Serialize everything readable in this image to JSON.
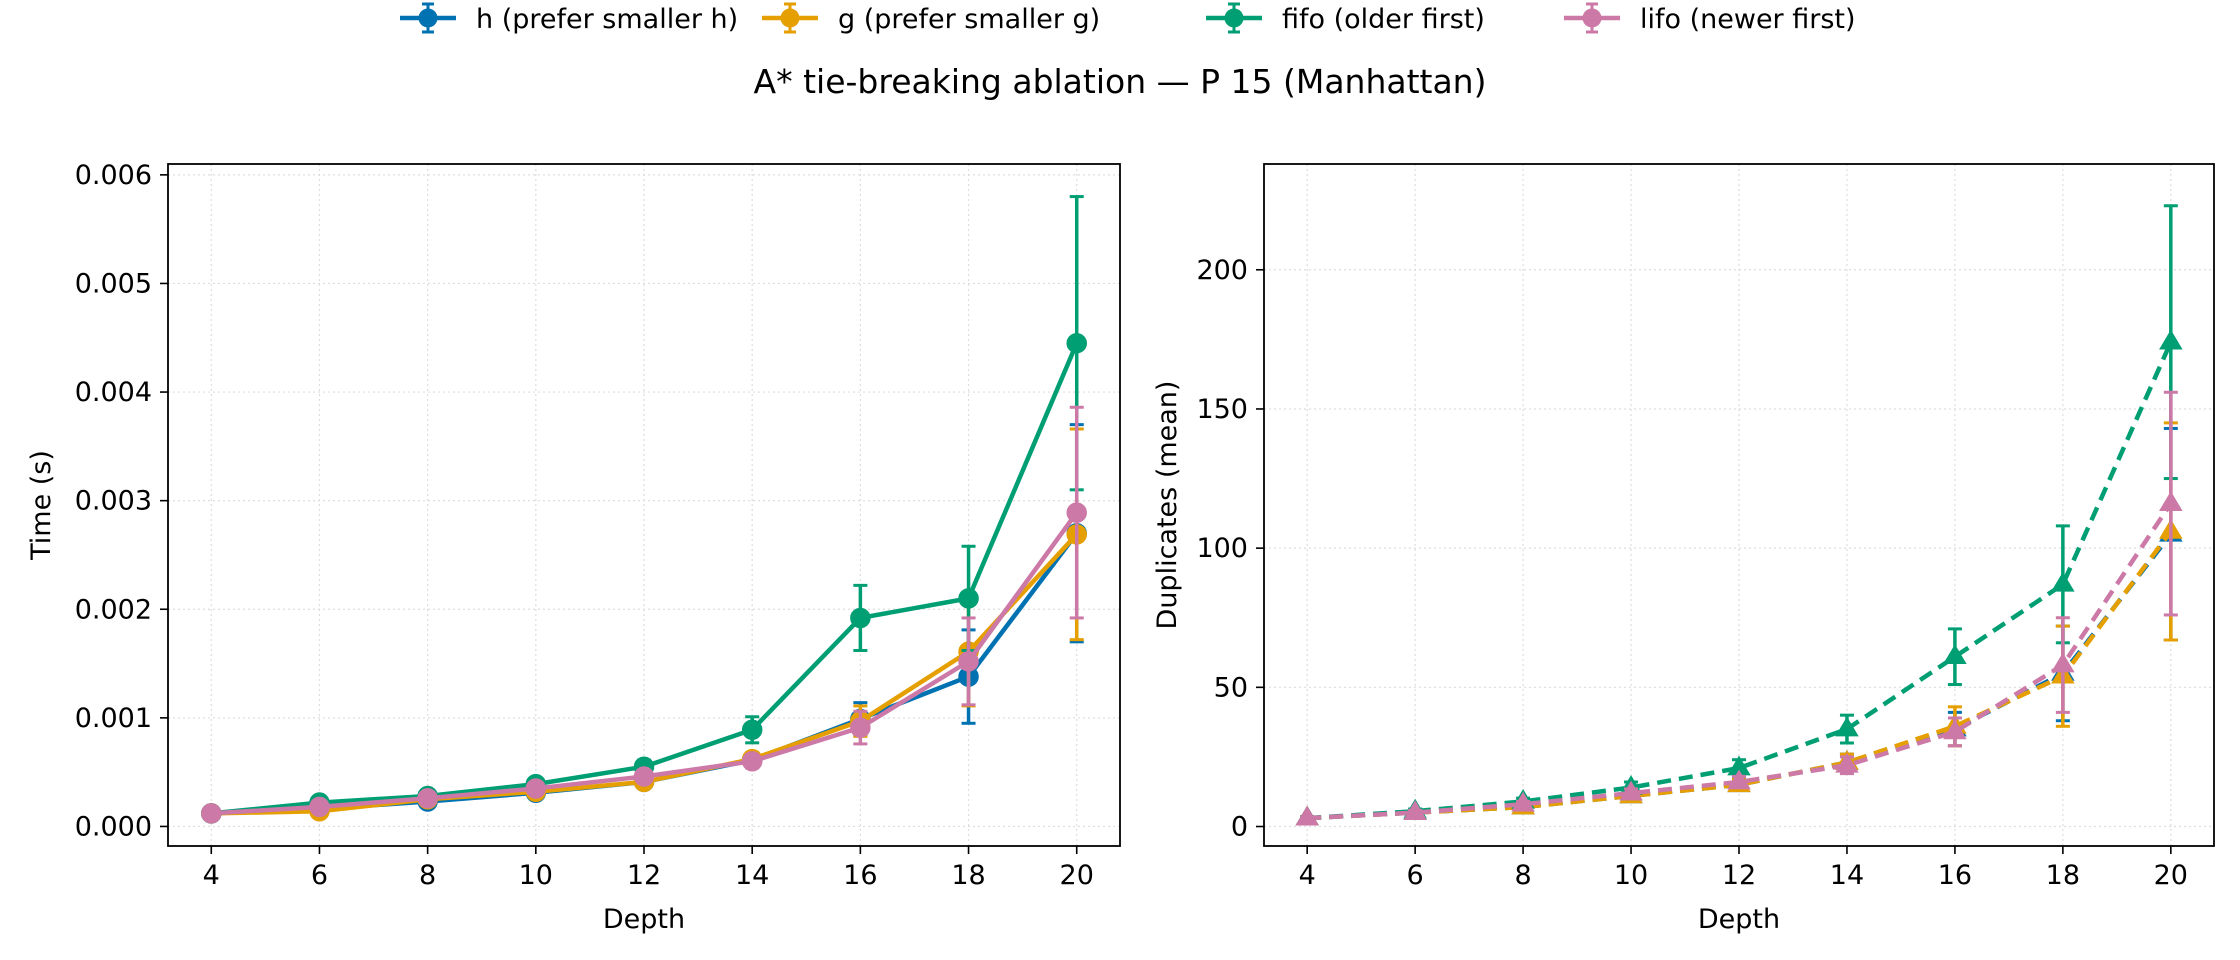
{
  "figure": {
    "title": "A* tie-breaking ablation — P 15 (Manhattan)"
  },
  "legend": [
    {
      "label": "h (prefer smaller h)",
      "color": "#0072B2"
    },
    {
      "label": "g (prefer smaller g)",
      "color": "#E69F00"
    },
    {
      "label": "fifo (older first)",
      "color": "#009E73"
    },
    {
      "label": "lifo (newer first)",
      "color": "#CC79A7"
    }
  ],
  "chart_data": [
    {
      "type": "line",
      "xlabel": "Depth",
      "ylabel": "Time (s)",
      "x": [
        4,
        6,
        8,
        10,
        12,
        14,
        16,
        18,
        20
      ],
      "xlim": [
        3.2,
        20.8
      ],
      "ylim": [
        -0.00018,
        0.0061
      ],
      "yticks": [
        0.0,
        0.001,
        0.002,
        0.003,
        0.004,
        0.005,
        0.006
      ],
      "ytick_labels": [
        "0.000",
        "0.001",
        "0.002",
        "0.003",
        "0.004",
        "0.005",
        "0.006"
      ],
      "marker": "circle",
      "line_style": "solid",
      "grid": true,
      "series": [
        {
          "name": "h (prefer smaller h)",
          "color": "#0072B2",
          "values": [
            0.00012,
            0.00016,
            0.00023,
            0.00031,
            0.00041,
            0.00061,
            0.00099,
            0.00138,
            0.0027
          ],
          "err": [
            1e-05,
            2e-05,
            3e-05,
            4e-05,
            5e-05,
            6e-05,
            0.00015,
            0.00043,
            0.001
          ]
        },
        {
          "name": "g (prefer smaller g)",
          "color": "#E69F00",
          "values": [
            0.00012,
            0.00014,
            0.00025,
            0.00032,
            0.00041,
            0.00062,
            0.00097,
            0.00161,
            0.00269
          ],
          "err": [
            1e-05,
            2e-05,
            3e-05,
            4e-05,
            5e-05,
            6e-05,
            0.00014,
            0.0005,
            0.00097
          ]
        },
        {
          "name": "fifo (older first)",
          "color": "#009E73",
          "values": [
            0.00012,
            0.00022,
            0.00028,
            0.00039,
            0.00055,
            0.00089,
            0.00192,
            0.0021,
            0.00445
          ],
          "err": [
            1e-05,
            3e-05,
            3e-05,
            4e-05,
            6e-05,
            0.00012,
            0.0003,
            0.00048,
            0.00135
          ]
        },
        {
          "name": "lifo (newer first)",
          "color": "#CC79A7",
          "values": [
            0.00012,
            0.00018,
            0.00026,
            0.00035,
            0.00046,
            0.0006,
            0.00091,
            0.00152,
            0.00289
          ],
          "err": [
            1e-05,
            2e-05,
            3e-05,
            4e-05,
            5e-05,
            6e-05,
            0.00015,
            0.0004,
            0.00097
          ]
        }
      ]
    },
    {
      "type": "line",
      "xlabel": "Depth",
      "ylabel": "Duplicates (mean)",
      "x": [
        4,
        6,
        8,
        10,
        12,
        14,
        16,
        18,
        20
      ],
      "xlim": [
        3.2,
        20.8
      ],
      "ylim": [
        -7,
        238
      ],
      "yticks": [
        0,
        50,
        100,
        150,
        200
      ],
      "ytick_labels": [
        "0",
        "50",
        "100",
        "150",
        "200"
      ],
      "marker": "triangle",
      "line_style": "dashed",
      "grid": true,
      "series": [
        {
          "name": "h (prefer smaller h)",
          "color": "#0072B2",
          "values": [
            3,
            5,
            7,
            11,
            15,
            23,
            35,
            55,
            105
          ],
          "err": [
            0.5,
            0.8,
            1.0,
            1.5,
            2.0,
            3.0,
            6.0,
            17.0,
            38.0
          ]
        },
        {
          "name": "g (prefer smaller g)",
          "color": "#E69F00",
          "values": [
            3,
            5,
            7,
            11,
            15,
            23,
            36,
            54,
            106
          ],
          "err": [
            0.5,
            0.8,
            1.0,
            1.5,
            2.0,
            3.0,
            7.0,
            18.0,
            39.0
          ]
        },
        {
          "name": "fifo (older first)",
          "color": "#009E73",
          "values": [
            3,
            5.5,
            9,
            14,
            21,
            35,
            61,
            87,
            174
          ],
          "err": [
            0.5,
            0.8,
            1.2,
            2.0,
            3.0,
            5.0,
            10.0,
            21.0,
            49.0
          ]
        },
        {
          "name": "lifo (newer first)",
          "color": "#CC79A7",
          "values": [
            3,
            5,
            8,
            12,
            16,
            22,
            34,
            58,
            116
          ],
          "err": [
            0.5,
            0.8,
            1.0,
            1.5,
            2.0,
            3.0,
            5.0,
            17.0,
            40.0
          ]
        }
      ]
    }
  ]
}
